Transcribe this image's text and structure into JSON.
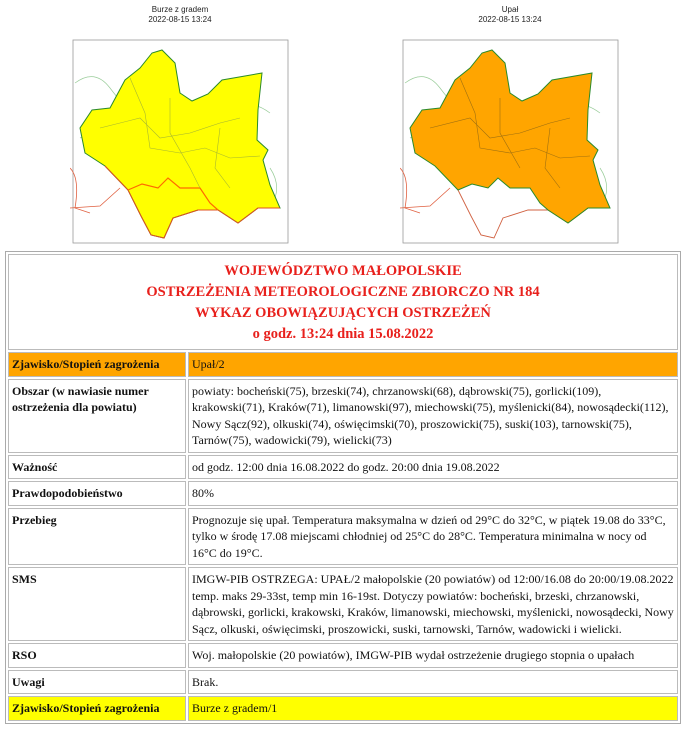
{
  "maps": [
    {
      "title": "Burze z gradem",
      "timestamp": "2022-08-15 13:24",
      "fill": "#ffff00"
    },
    {
      "title": "Upał",
      "timestamp": "2022-08-15 13:24",
      "fill": "#ffa500"
    }
  ],
  "header": {
    "line1": "WOJEWÓDZTWO MAŁOPOLSKIE",
    "line2": "OSTRZEŻENIA METEOROLOGICZNE ZBIORCZO NR 184",
    "line3": "WYKAZ OBOWIĄZUJĄCYCH OSTRZEŻEŃ",
    "line4": "o godz. 13:24 dnia 15.08.2022"
  },
  "rows": [
    {
      "label": "Zjawisko/Stopień zagrożenia",
      "value": "Upał/2"
    },
    {
      "label": "Obszar (w nawiasie numer ostrzeżenia dla powiatu)",
      "value": "powiaty: bocheński(75), brzeski(74), chrzanowski(68), dąbrowski(75), gorlicki(109), krakowski(71), Kraków(71), limanowski(97), miechowski(75), myślenicki(84), nowosądecki(112), Nowy Sącz(92), olkuski(74), oświęcimski(70), proszowicki(75), suski(103), tarnowski(75), Tarnów(75), wadowicki(79), wielicki(73)"
    },
    {
      "label": "Ważność",
      "value": "od godz. 12:00 dnia 16.08.2022 do godz. 20:00 dnia 19.08.2022"
    },
    {
      "label": "Prawdopodobieństwo",
      "value": "80%"
    },
    {
      "label": "Przebieg",
      "value": "Prognozuje się upał. Temperatura maksymalna w dzień od 29°C do 32°C, w piątek 19.08 do 33°C, tylko w środę 17.08 miejscami chłodniej od 25°C do 28°C. Temperatura minimalna w nocy od 16°C do 19°C."
    },
    {
      "label": "SMS",
      "value": "IMGW-PIB OSTRZEGA: UPAŁ/2 małopolskie (20 powiatów) od 12:00/16.08 do 20:00/19.08.2022 temp. maks 29-33st, temp min 16-19st. Dotyczy powiatów: bocheński, brzeski, chrzanowski, dąbrowski, gorlicki, krakowski, Kraków, limanowski, miechowski, myślenicki, nowosądecki, Nowy Sącz, olkuski, oświęcimski, proszowicki, suski, tarnowski, Tarnów, wadowicki i wielicki."
    },
    {
      "label": "RSO",
      "value": "Woj. małopolskie (20 powiatów), IMGW-PIB wydał ostrzeżenie drugiego stopnia o upałach"
    },
    {
      "label": "Uwagi",
      "value": "Brak."
    },
    {
      "label": "Zjawisko/Stopień zagrożenia",
      "value": "Burze z gradem/1"
    }
  ]
}
